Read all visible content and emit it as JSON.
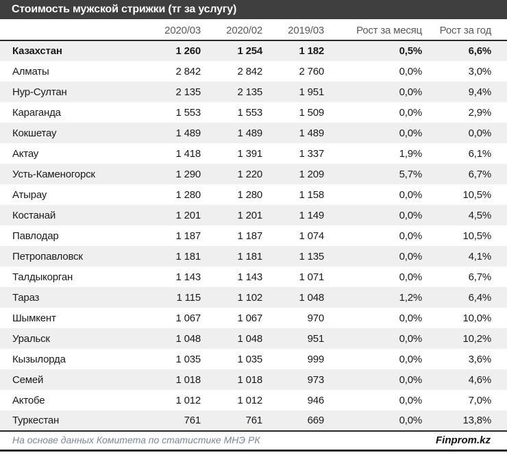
{
  "title": "Стоимость мужской стрижки (тг за услугу)",
  "colors": {
    "title_bar_bg": "#3f3f3f",
    "title_text": "#ffffff",
    "header_text": "#595959",
    "cell_text": "#1a1a1a",
    "row_stripe": "#efefef",
    "border": "#262626"
  },
  "table": {
    "columns": [
      "",
      "2020/03",
      "2020/02",
      "2019/03",
      "Рост за месяц",
      "Рост за год"
    ],
    "rows": [
      {
        "name": "Казахстан",
        "v2020_03": "1 260",
        "v2020_02": "1 254",
        "v2019_03": "1 182",
        "growth_month": "0,5%",
        "growth_year": "6,6%",
        "bold": true
      },
      {
        "name": "Алматы",
        "v2020_03": "2 842",
        "v2020_02": "2 842",
        "v2019_03": "2 760",
        "growth_month": "0,0%",
        "growth_year": "3,0%",
        "bold": false
      },
      {
        "name": "Нур-Султан",
        "v2020_03": "2 135",
        "v2020_02": "2 135",
        "v2019_03": "1 951",
        "growth_month": "0,0%",
        "growth_year": "9,4%",
        "bold": false
      },
      {
        "name": "Караганда",
        "v2020_03": "1 553",
        "v2020_02": "1 553",
        "v2019_03": "1 509",
        "growth_month": "0,0%",
        "growth_year": "2,9%",
        "bold": false
      },
      {
        "name": "Кокшетау",
        "v2020_03": "1 489",
        "v2020_02": "1 489",
        "v2019_03": "1 489",
        "growth_month": "0,0%",
        "growth_year": "0,0%",
        "bold": false
      },
      {
        "name": "Актау",
        "v2020_03": "1 418",
        "v2020_02": "1 391",
        "v2019_03": "1 337",
        "growth_month": "1,9%",
        "growth_year": "6,1%",
        "bold": false
      },
      {
        "name": "Усть-Каменогорск",
        "v2020_03": "1 290",
        "v2020_02": "1 220",
        "v2019_03": "1 209",
        "growth_month": "5,7%",
        "growth_year": "6,7%",
        "bold": false
      },
      {
        "name": "Атырау",
        "v2020_03": "1 280",
        "v2020_02": "1 280",
        "v2019_03": "1 158",
        "growth_month": "0,0%",
        "growth_year": "10,5%",
        "bold": false
      },
      {
        "name": "Костанай",
        "v2020_03": "1 201",
        "v2020_02": "1 201",
        "v2019_03": "1 149",
        "growth_month": "0,0%",
        "growth_year": "4,5%",
        "bold": false
      },
      {
        "name": "Павлодар",
        "v2020_03": "1 187",
        "v2020_02": "1 187",
        "v2019_03": "1 074",
        "growth_month": "0,0%",
        "growth_year": "10,5%",
        "bold": false
      },
      {
        "name": "Петропавловск",
        "v2020_03": "1 181",
        "v2020_02": "1 181",
        "v2019_03": "1 135",
        "growth_month": "0,0%",
        "growth_year": "4,1%",
        "bold": false
      },
      {
        "name": "Талдыкорган",
        "v2020_03": "1 143",
        "v2020_02": "1 143",
        "v2019_03": "1 071",
        "growth_month": "0,0%",
        "growth_year": "6,7%",
        "bold": false
      },
      {
        "name": "Тараз",
        "v2020_03": "1 115",
        "v2020_02": "1 102",
        "v2019_03": "1 048",
        "growth_month": "1,2%",
        "growth_year": "6,4%",
        "bold": false
      },
      {
        "name": "Шымкент",
        "v2020_03": "1 067",
        "v2020_02": "1 067",
        "v2019_03": "970",
        "growth_month": "0,0%",
        "growth_year": "10,0%",
        "bold": false
      },
      {
        "name": "Уральск",
        "v2020_03": "1 048",
        "v2020_02": "1 048",
        "v2019_03": "951",
        "growth_month": "0,0%",
        "growth_year": "10,2%",
        "bold": false
      },
      {
        "name": "Кызылорда",
        "v2020_03": "1 035",
        "v2020_02": "1 035",
        "v2019_03": "999",
        "growth_month": "0,0%",
        "growth_year": "3,6%",
        "bold": false
      },
      {
        "name": "Семей",
        "v2020_03": "1 018",
        "v2020_02": "1 018",
        "v2019_03": "973",
        "growth_month": "0,0%",
        "growth_year": "4,6%",
        "bold": false
      },
      {
        "name": "Актобе",
        "v2020_03": "1 012",
        "v2020_02": "1 012",
        "v2019_03": "946",
        "growth_month": "0,0%",
        "growth_year": "7,0%",
        "bold": false
      },
      {
        "name": "Туркестан",
        "v2020_03": "761",
        "v2020_02": "761",
        "v2019_03": "669",
        "growth_month": "0,0%",
        "growth_year": "13,8%",
        "bold": false
      }
    ]
  },
  "footer": {
    "source": "На основе данных Комитета по статистике МНЭ РК",
    "brand": "Finprom.kz"
  },
  "chart_data": {
    "type": "table",
    "title": "Стоимость мужской стрижки (тг за услугу)",
    "columns": [
      "2020/03",
      "2020/02",
      "2019/03",
      "Рост за месяц, %",
      "Рост за год, %"
    ],
    "rows": [
      [
        "Казахстан",
        1260,
        1254,
        1182,
        0.5,
        6.6
      ],
      [
        "Алматы",
        2842,
        2842,
        2760,
        0.0,
        3.0
      ],
      [
        "Нур-Султан",
        2135,
        2135,
        1951,
        0.0,
        9.4
      ],
      [
        "Караганда",
        1553,
        1553,
        1509,
        0.0,
        2.9
      ],
      [
        "Кокшетау",
        1489,
        1489,
        1489,
        0.0,
        0.0
      ],
      [
        "Актау",
        1418,
        1391,
        1337,
        1.9,
        6.1
      ],
      [
        "Усть-Каменогорск",
        1290,
        1220,
        1209,
        5.7,
        6.7
      ],
      [
        "Атырау",
        1280,
        1280,
        1158,
        0.0,
        10.5
      ],
      [
        "Костанай",
        1201,
        1201,
        1149,
        0.0,
        4.5
      ],
      [
        "Павлодар",
        1187,
        1187,
        1074,
        0.0,
        10.5
      ],
      [
        "Петропавловск",
        1181,
        1181,
        1135,
        0.0,
        4.1
      ],
      [
        "Талдыкорган",
        1143,
        1143,
        1071,
        0.0,
        6.7
      ],
      [
        "Тараз",
        1115,
        1102,
        1048,
        1.2,
        6.4
      ],
      [
        "Шымкент",
        1067,
        1067,
        970,
        0.0,
        10.0
      ],
      [
        "Уральск",
        1048,
        1048,
        951,
        0.0,
        10.2
      ],
      [
        "Кызылорда",
        1035,
        1035,
        999,
        0.0,
        3.6
      ],
      [
        "Семей",
        1018,
        1018,
        973,
        0.0,
        4.6
      ],
      [
        "Актобе",
        1012,
        1012,
        946,
        0.0,
        7.0
      ],
      [
        "Туркестан",
        761,
        761,
        669,
        0.0,
        13.8
      ]
    ]
  }
}
